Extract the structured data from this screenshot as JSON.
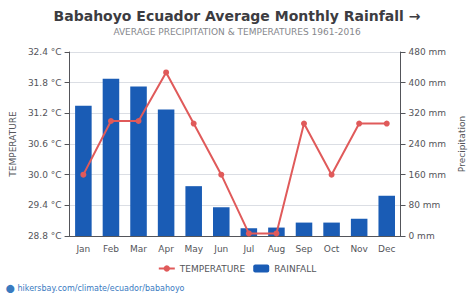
{
  "chart_data": {
    "type": "bar",
    "title": "Babahoyo Ecuador Average Monthly Rainfall →",
    "subtitle": "AVERAGE PRECIPITATION & TEMPERATURES 1961-2016",
    "categories": [
      "Jan",
      "Feb",
      "Mar",
      "Apr",
      "May",
      "Jun",
      "Jul",
      "Aug",
      "Sep",
      "Oct",
      "Nov",
      "Dec"
    ],
    "series": [
      {
        "name": "TEMPERATURE",
        "type": "line",
        "axis": "y",
        "color": "#e05a5a",
        "marker": "circle",
        "values": [
          30.0,
          31.05,
          31.05,
          32.0,
          31.0,
          30.0,
          28.85,
          28.85,
          31.0,
          30.0,
          31.0,
          31.0
        ]
      },
      {
        "name": "RAINFALL",
        "type": "bar",
        "axis": "y2",
        "color": "#1a5cb5",
        "values": [
          340,
          410,
          390,
          330,
          130,
          75,
          20,
          22,
          35,
          35,
          45,
          105
        ]
      }
    ],
    "ylabel": "TEMPERATURE",
    "ylim": [
      28.8,
      32.4
    ],
    "yticks": [
      {
        "value": 28.8,
        "label": "28.8 °C"
      },
      {
        "value": 29.4,
        "label": "29.4 °C"
      },
      {
        "value": 30.0,
        "label": "30.0 °C"
      },
      {
        "value": 30.6,
        "label": "30.6 °C"
      },
      {
        "value": 31.2,
        "label": "31.2 °C"
      },
      {
        "value": 31.8,
        "label": "31.8 °C"
      },
      {
        "value": 32.4,
        "label": "32.4 °C"
      }
    ],
    "y2label": "Precipitation",
    "y2lim": [
      0,
      480
    ],
    "y2ticks": [
      {
        "value": 0,
        "label": "0 mm"
      },
      {
        "value": 80,
        "label": "80 mm"
      },
      {
        "value": 160,
        "label": "160 mm"
      },
      {
        "value": 240,
        "label": "240 mm"
      },
      {
        "value": 320,
        "label": "320 mm"
      },
      {
        "value": 400,
        "label": "400 mm"
      },
      {
        "value": 480,
        "label": "480 mm"
      }
    ],
    "grid": true,
    "legend": "bottom",
    "annotations": [
      "⬤ hikersbay.com/climate/ecuador/babahoyo"
    ]
  }
}
